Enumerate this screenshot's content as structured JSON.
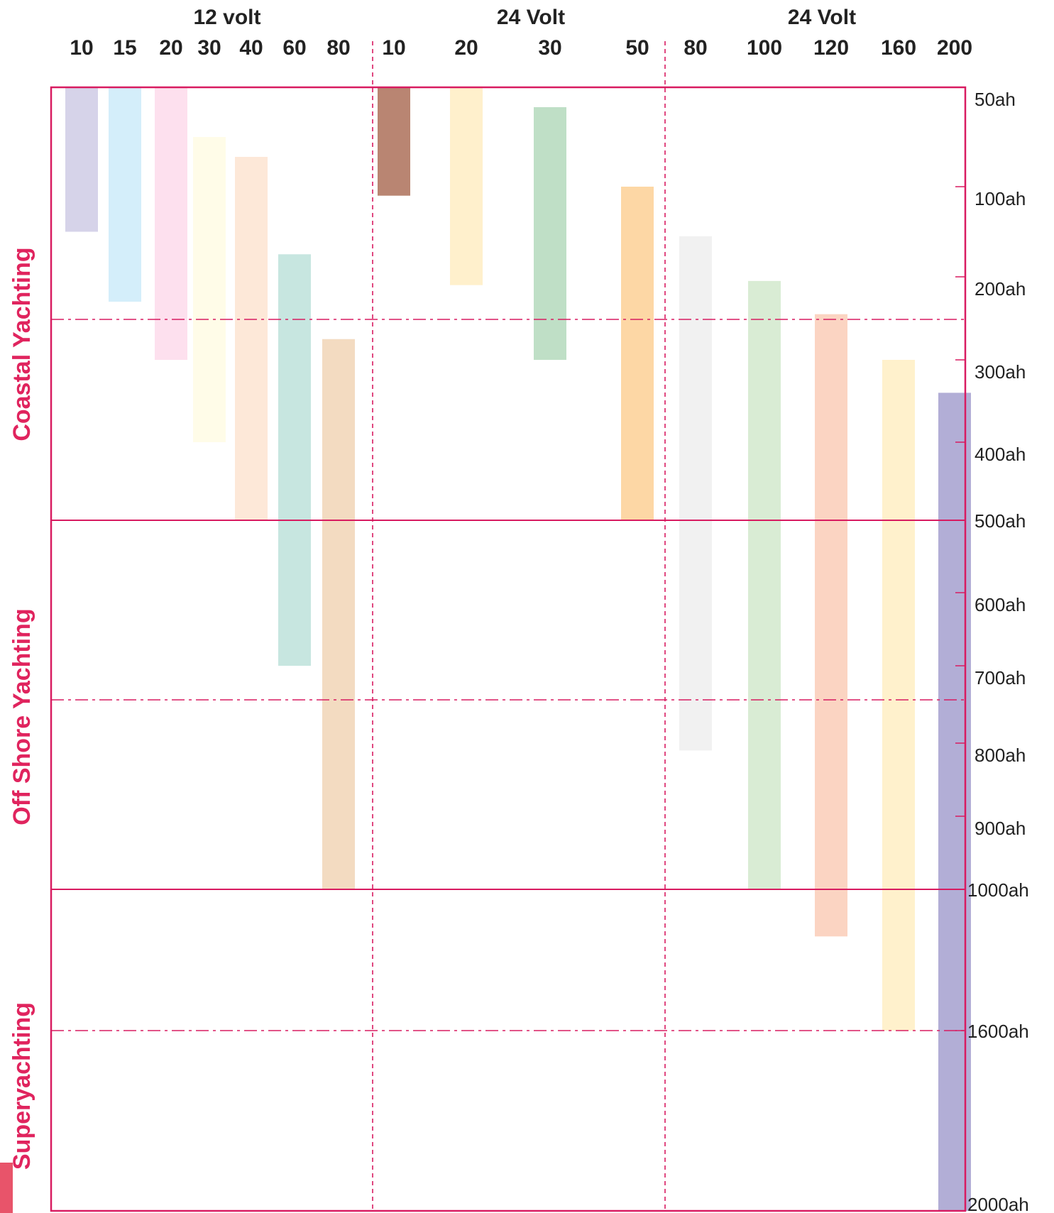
{
  "chart_data": {
    "type": "bar",
    "orientation": "vertical-range",
    "groups": [
      {
        "label": "12 volt",
        "columns": [
          "10",
          "15",
          "20",
          "30",
          "40",
          "60",
          "80"
        ]
      },
      {
        "label": "24 Volt",
        "columns": [
          "10",
          "20",
          "30",
          "50"
        ]
      },
      {
        "label": "24 Volt",
        "columns": [
          "80",
          "100",
          "120",
          "160",
          "200"
        ]
      }
    ],
    "y_ticks": [
      "50ah",
      "100ah",
      "200ah",
      "300ah",
      "400ah",
      "500ah",
      "600ah",
      "700ah",
      "800ah",
      "900ah",
      "1000ah",
      "1600ah",
      "2000ah"
    ],
    "zones": [
      "Coastal Yachting",
      "Off Shore Yachting",
      "Superyachting"
    ],
    "bars": [
      {
        "group": 0,
        "column": "10",
        "from": "50ah",
        "to": "150ah",
        "color": "#d6d3e9"
      },
      {
        "group": 0,
        "column": "15",
        "from": "50ah",
        "to": "230ah",
        "color": "#d4eefa"
      },
      {
        "group": 0,
        "column": "20",
        "from": "50ah",
        "to": "300ah",
        "color": "#fde0ee"
      },
      {
        "group": 0,
        "column": "30",
        "from": "75ah",
        "to": "400ah",
        "color": "#fffce8"
      },
      {
        "group": 0,
        "column": "40",
        "from": "85ah",
        "to": "500ah",
        "color": "#fde8d8"
      },
      {
        "group": 0,
        "column": "60",
        "from": "175ah",
        "to": "700ah",
        "color": "#c7e6e0"
      },
      {
        "group": 0,
        "column": "80",
        "from": "275ah",
        "to": "1000ah",
        "color": "#f3dbc1"
      },
      {
        "group": 1,
        "column": "10",
        "from": "50ah",
        "to": "110ah",
        "color": "#b98572"
      },
      {
        "group": 1,
        "column": "20",
        "from": "50ah",
        "to": "210ah",
        "color": "#fff0cc"
      },
      {
        "group": 1,
        "column": "30",
        "from": "60ah",
        "to": "300ah",
        "color": "#bfdfc6"
      },
      {
        "group": 1,
        "column": "50",
        "from": "100ah",
        "to": "500ah",
        "color": "#fdd7a5"
      },
      {
        "group": 2,
        "column": "80",
        "from": "155ah",
        "to": "810ah",
        "color": "#f1f1f1"
      },
      {
        "group": 2,
        "column": "100",
        "from": "205ah",
        "to": "1000ah",
        "color": "#d9ecd4"
      },
      {
        "group": 2,
        "column": "120",
        "from": "245ah",
        "to": "1200ah",
        "color": "#fbd4c2"
      },
      {
        "group": 2,
        "column": "160",
        "from": "300ah",
        "to": "1600ah",
        "color": "#fff1cc"
      },
      {
        "group": 2,
        "column": "200",
        "from": "340ah",
        "to": "2000ah",
        "color": "#b2aed6"
      }
    ],
    "colors": {
      "frame": "#d81b60",
      "zone_label": "#e0245e"
    }
  }
}
